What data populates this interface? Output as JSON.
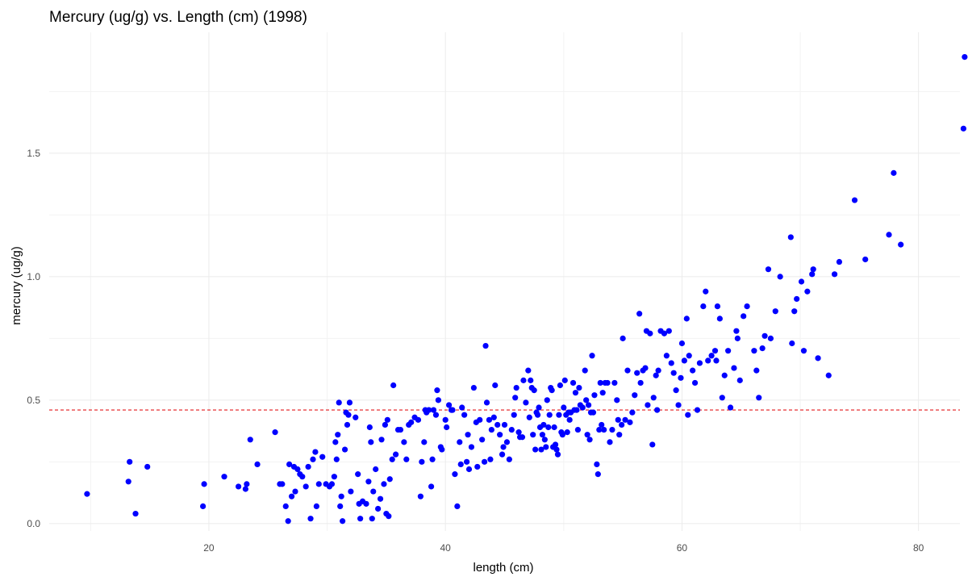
{
  "chart_data": {
    "type": "scatter",
    "title": "Mercury (ug/g) vs. Length (cm) (1998)",
    "xlabel": "length (cm)",
    "ylabel": "mercury (ug/g)",
    "xlim": [
      6.5,
      83.5
    ],
    "ylim": [
      -0.03,
      1.99
    ],
    "x_ticks": [
      20,
      40,
      60,
      80
    ],
    "y_ticks": [
      0.0,
      0.5,
      1.0,
      1.5
    ],
    "x_tick_labels": [
      "20",
      "40",
      "60",
      "80"
    ],
    "y_tick_labels": [
      "0.0",
      "0.5",
      "1.0",
      "1.5"
    ],
    "grid": true,
    "point_color": "#0000ff",
    "reference_line": {
      "y": 0.46,
      "color": "#e31a1c",
      "style": "dashed"
    },
    "points": [
      [
        9.7,
        0.12
      ],
      [
        13.3,
        0.25
      ],
      [
        13.2,
        0.17
      ],
      [
        13.8,
        0.04
      ],
      [
        14.8,
        0.23
      ],
      [
        19.6,
        0.16
      ],
      [
        19.5,
        0.07
      ],
      [
        21.3,
        0.19
      ],
      [
        22.5,
        0.15
      ],
      [
        23.1,
        0.14
      ],
      [
        23.2,
        0.16
      ],
      [
        23.5,
        0.34
      ],
      [
        24.1,
        0.24
      ],
      [
        25.6,
        0.37
      ],
      [
        26.0,
        0.16
      ],
      [
        26.2,
        0.16
      ],
      [
        26.5,
        0.07
      ],
      [
        26.7,
        0.01
      ],
      [
        26.8,
        0.24
      ],
      [
        27.0,
        0.11
      ],
      [
        27.2,
        0.23
      ],
      [
        27.3,
        0.13
      ],
      [
        27.5,
        0.22
      ],
      [
        27.7,
        0.2
      ],
      [
        27.9,
        0.19
      ],
      [
        28.2,
        0.15
      ],
      [
        28.4,
        0.23
      ],
      [
        28.6,
        0.02
      ],
      [
        28.8,
        0.26
      ],
      [
        29.0,
        0.29
      ],
      [
        29.1,
        0.07
      ],
      [
        29.3,
        0.16
      ],
      [
        29.6,
        0.27
      ],
      [
        29.9,
        0.16
      ],
      [
        30.2,
        0.15
      ],
      [
        30.4,
        0.16
      ],
      [
        30.6,
        0.19
      ],
      [
        30.7,
        0.33
      ],
      [
        30.8,
        0.26
      ],
      [
        30.9,
        0.36
      ],
      [
        31.0,
        0.49
      ],
      [
        31.1,
        0.07
      ],
      [
        31.2,
        0.11
      ],
      [
        31.3,
        0.01
      ],
      [
        31.5,
        0.3
      ],
      [
        31.6,
        0.45
      ],
      [
        31.7,
        0.4
      ],
      [
        31.8,
        0.44
      ],
      [
        31.9,
        0.49
      ],
      [
        32.0,
        0.13
      ],
      [
        32.4,
        0.43
      ],
      [
        32.6,
        0.2
      ],
      [
        32.7,
        0.08
      ],
      [
        32.8,
        0.02
      ],
      [
        33.0,
        0.09
      ],
      [
        33.3,
        0.08
      ],
      [
        33.5,
        0.17
      ],
      [
        33.6,
        0.39
      ],
      [
        33.7,
        0.33
      ],
      [
        33.8,
        0.02
      ],
      [
        33.9,
        0.13
      ],
      [
        34.1,
        0.22
      ],
      [
        34.3,
        0.06
      ],
      [
        34.5,
        0.1
      ],
      [
        34.6,
        0.34
      ],
      [
        34.8,
        0.16
      ],
      [
        34.9,
        0.4
      ],
      [
        35.0,
        0.04
      ],
      [
        35.1,
        0.42
      ],
      [
        35.2,
        0.03
      ],
      [
        35.3,
        0.18
      ],
      [
        35.5,
        0.26
      ],
      [
        35.6,
        0.56
      ],
      [
        35.8,
        0.28
      ],
      [
        36.0,
        0.38
      ],
      [
        36.2,
        0.38
      ],
      [
        36.5,
        0.33
      ],
      [
        36.7,
        0.26
      ],
      [
        36.9,
        0.4
      ],
      [
        37.1,
        0.41
      ],
      [
        37.4,
        0.43
      ],
      [
        37.7,
        0.42
      ],
      [
        37.9,
        0.11
      ],
      [
        38.0,
        0.25
      ],
      [
        38.2,
        0.33
      ],
      [
        38.3,
        0.46
      ],
      [
        38.4,
        0.45
      ],
      [
        38.6,
        0.46
      ],
      [
        38.8,
        0.15
      ],
      [
        38.9,
        0.26
      ],
      [
        39.0,
        0.46
      ],
      [
        39.2,
        0.44
      ],
      [
        39.3,
        0.54
      ],
      [
        39.4,
        0.5
      ],
      [
        39.6,
        0.31
      ],
      [
        39.7,
        0.3
      ],
      [
        40.0,
        0.42
      ],
      [
        40.1,
        0.39
      ],
      [
        40.3,
        0.48
      ],
      [
        40.5,
        0.46
      ],
      [
        40.6,
        0.46
      ],
      [
        40.8,
        0.2
      ],
      [
        41.0,
        0.07
      ],
      [
        41.2,
        0.33
      ],
      [
        41.3,
        0.24
      ],
      [
        41.4,
        0.47
      ],
      [
        41.6,
        0.44
      ],
      [
        41.8,
        0.25
      ],
      [
        41.9,
        0.36
      ],
      [
        42.0,
        0.22
      ],
      [
        42.2,
        0.31
      ],
      [
        42.4,
        0.55
      ],
      [
        42.6,
        0.41
      ],
      [
        42.7,
        0.23
      ],
      [
        42.9,
        0.42
      ],
      [
        43.1,
        0.34
      ],
      [
        43.3,
        0.25
      ],
      [
        43.4,
        0.72
      ],
      [
        43.5,
        0.49
      ],
      [
        43.7,
        0.42
      ],
      [
        43.8,
        0.26
      ],
      [
        43.9,
        0.38
      ],
      [
        44.1,
        0.43
      ],
      [
        44.2,
        0.56
      ],
      [
        44.4,
        0.4
      ],
      [
        44.6,
        0.36
      ],
      [
        44.8,
        0.28
      ],
      [
        44.9,
        0.31
      ],
      [
        45.0,
        0.4
      ],
      [
        45.2,
        0.33
      ],
      [
        45.4,
        0.26
      ],
      [
        45.6,
        0.38
      ],
      [
        45.8,
        0.44
      ],
      [
        45.9,
        0.51
      ],
      [
        46.0,
        0.55
      ],
      [
        46.2,
        0.37
      ],
      [
        46.3,
        0.35
      ],
      [
        46.5,
        0.35
      ],
      [
        46.6,
        0.58
      ],
      [
        46.8,
        0.49
      ],
      [
        47.0,
        0.62
      ],
      [
        47.1,
        0.43
      ],
      [
        47.2,
        0.58
      ],
      [
        47.3,
        0.55
      ],
      [
        47.4,
        0.36
      ],
      [
        47.5,
        0.54
      ],
      [
        47.6,
        0.3
      ],
      [
        47.7,
        0.45
      ],
      [
        47.8,
        0.44
      ],
      [
        47.9,
        0.47
      ],
      [
        48.0,
        0.39
      ],
      [
        48.1,
        0.3
      ],
      [
        48.2,
        0.36
      ],
      [
        48.3,
        0.4
      ],
      [
        48.4,
        0.34
      ],
      [
        48.5,
        0.31
      ],
      [
        48.6,
        0.5
      ],
      [
        48.7,
        0.39
      ],
      [
        48.8,
        0.44
      ],
      [
        48.9,
        0.55
      ],
      [
        49.0,
        0.54
      ],
      [
        49.1,
        0.31
      ],
      [
        49.2,
        0.39
      ],
      [
        49.3,
        0.32
      ],
      [
        49.4,
        0.3
      ],
      [
        49.5,
        0.28
      ],
      [
        49.6,
        0.44
      ],
      [
        49.7,
        0.56
      ],
      [
        49.8,
        0.37
      ],
      [
        49.9,
        0.36
      ],
      [
        50.0,
        0.47
      ],
      [
        50.1,
        0.58
      ],
      [
        50.2,
        0.44
      ],
      [
        50.3,
        0.37
      ],
      [
        50.4,
        0.45
      ],
      [
        50.5,
        0.42
      ],
      [
        50.6,
        0.45
      ],
      [
        50.8,
        0.57
      ],
      [
        50.9,
        0.46
      ],
      [
        51.0,
        0.53
      ],
      [
        51.1,
        0.46
      ],
      [
        51.2,
        0.38
      ],
      [
        51.3,
        0.55
      ],
      [
        51.4,
        0.48
      ],
      [
        51.6,
        0.47
      ],
      [
        51.8,
        0.62
      ],
      [
        51.9,
        0.5
      ],
      [
        52.0,
        0.36
      ],
      [
        52.1,
        0.48
      ],
      [
        52.2,
        0.34
      ],
      [
        52.3,
        0.45
      ],
      [
        52.4,
        0.68
      ],
      [
        52.5,
        0.45
      ],
      [
        52.6,
        0.52
      ],
      [
        52.8,
        0.24
      ],
      [
        52.9,
        0.2
      ],
      [
        53.0,
        0.38
      ],
      [
        53.1,
        0.57
      ],
      [
        53.2,
        0.4
      ],
      [
        53.3,
        0.53
      ],
      [
        53.4,
        0.38
      ],
      [
        53.5,
        0.57
      ],
      [
        53.7,
        0.57
      ],
      [
        53.9,
        0.33
      ],
      [
        54.1,
        0.38
      ],
      [
        54.3,
        0.57
      ],
      [
        54.5,
        0.5
      ],
      [
        54.6,
        0.42
      ],
      [
        54.7,
        0.36
      ],
      [
        54.9,
        0.4
      ],
      [
        55.0,
        0.75
      ],
      [
        55.2,
        0.42
      ],
      [
        55.4,
        0.62
      ],
      [
        55.6,
        0.41
      ],
      [
        55.8,
        0.45
      ],
      [
        56.0,
        0.52
      ],
      [
        56.2,
        0.61
      ],
      [
        56.4,
        0.85
      ],
      [
        56.5,
        0.57
      ],
      [
        56.7,
        0.62
      ],
      [
        56.9,
        0.63
      ],
      [
        57.0,
        0.78
      ],
      [
        57.1,
        0.48
      ],
      [
        57.3,
        0.77
      ],
      [
        57.5,
        0.32
      ],
      [
        57.6,
        0.51
      ],
      [
        57.8,
        0.6
      ],
      [
        57.9,
        0.46
      ],
      [
        58.0,
        0.62
      ],
      [
        58.2,
        0.78
      ],
      [
        58.5,
        0.77
      ],
      [
        58.7,
        0.68
      ],
      [
        58.9,
        0.78
      ],
      [
        59.1,
        0.65
      ],
      [
        59.3,
        0.61
      ],
      [
        59.5,
        0.54
      ],
      [
        59.7,
        0.48
      ],
      [
        59.9,
        0.59
      ],
      [
        60.0,
        0.73
      ],
      [
        60.2,
        0.66
      ],
      [
        60.4,
        0.83
      ],
      [
        60.5,
        0.44
      ],
      [
        60.6,
        0.68
      ],
      [
        60.9,
        0.62
      ],
      [
        61.1,
        0.57
      ],
      [
        61.3,
        0.46
      ],
      [
        61.5,
        0.65
      ],
      [
        61.8,
        0.88
      ],
      [
        62.0,
        0.94
      ],
      [
        62.2,
        0.66
      ],
      [
        62.5,
        0.68
      ],
      [
        62.8,
        0.7
      ],
      [
        62.9,
        0.66
      ],
      [
        63.0,
        0.88
      ],
      [
        63.2,
        0.83
      ],
      [
        63.4,
        0.51
      ],
      [
        63.6,
        0.6
      ],
      [
        63.9,
        0.7
      ],
      [
        64.1,
        0.47
      ],
      [
        64.4,
        0.63
      ],
      [
        64.6,
        0.78
      ],
      [
        64.7,
        0.75
      ],
      [
        64.9,
        0.58
      ],
      [
        65.2,
        0.84
      ],
      [
        65.5,
        0.88
      ],
      [
        66.1,
        0.7
      ],
      [
        66.3,
        0.62
      ],
      [
        66.5,
        0.51
      ],
      [
        66.8,
        0.71
      ],
      [
        67.0,
        0.76
      ],
      [
        67.3,
        1.03
      ],
      [
        67.5,
        0.75
      ],
      [
        67.9,
        0.86
      ],
      [
        68.3,
        1.0
      ],
      [
        69.2,
        1.16
      ],
      [
        69.3,
        0.73
      ],
      [
        69.5,
        0.86
      ],
      [
        69.7,
        0.91
      ],
      [
        70.1,
        0.98
      ],
      [
        70.3,
        0.7
      ],
      [
        70.6,
        0.94
      ],
      [
        71.0,
        1.01
      ],
      [
        71.1,
        1.03
      ],
      [
        71.5,
        0.67
      ],
      [
        72.4,
        0.6
      ],
      [
        72.9,
        1.01
      ],
      [
        73.3,
        1.06
      ],
      [
        74.6,
        1.31
      ],
      [
        75.5,
        1.07
      ],
      [
        77.5,
        1.17
      ],
      [
        77.9,
        1.42
      ],
      [
        78.5,
        1.13
      ],
      [
        83.8,
        1.6
      ],
      [
        83.9,
        1.89
      ]
    ]
  }
}
